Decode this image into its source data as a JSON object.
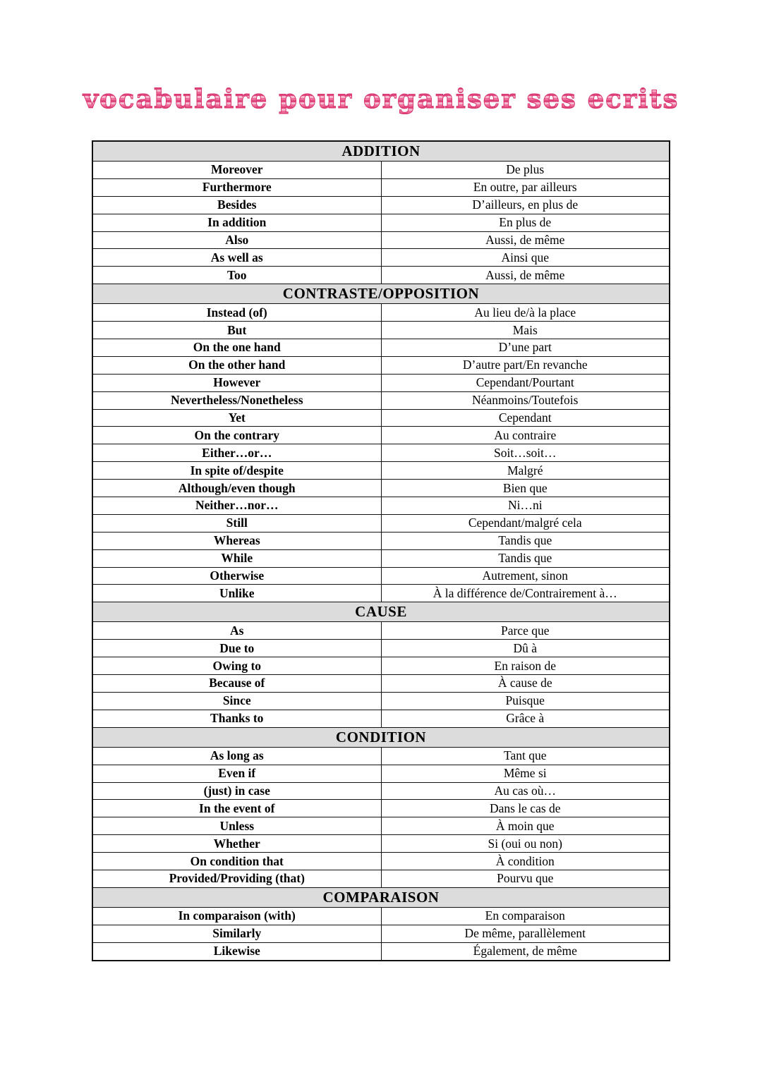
{
  "page": {
    "title": "vocabulaire pour organiser ses ecrits",
    "title_color": "#ee6d9b",
    "header_bg_color": "#dcdcdc",
    "border_color": "#111111"
  },
  "table": {
    "columns": [
      "english",
      "french"
    ],
    "sections": [
      {
        "header": "ADDITION",
        "rows": [
          {
            "en": "Moreover",
            "fr": "De plus"
          },
          {
            "en": "Furthermore",
            "fr": "En outre, par ailleurs"
          },
          {
            "en": "Besides",
            "fr": "D’ailleurs, en plus de"
          },
          {
            "en": "In addition",
            "fr": "En plus de"
          },
          {
            "en": "Also",
            "fr": "Aussi, de même"
          },
          {
            "en": "As well as",
            "fr": "Ainsi que"
          },
          {
            "en": "Too",
            "fr": "Aussi, de même"
          }
        ]
      },
      {
        "header": "CONTRASTE/OPPOSITION",
        "rows": [
          {
            "en": "Instead (of)",
            "fr": "Au lieu de/à la place"
          },
          {
            "en": "But",
            "fr": "Mais"
          },
          {
            "en": "On the one hand",
            "fr": "D’une part"
          },
          {
            "en": "On the other hand",
            "fr": "D’autre part/En revanche"
          },
          {
            "en": "However",
            "fr": "Cependant/Pourtant"
          },
          {
            "en": "Nevertheless/Nonetheless",
            "fr": "Néanmoins/Toutefois"
          },
          {
            "en": "Yet",
            "fr": "Cependant"
          },
          {
            "en": "On the contrary",
            "fr": "Au contraire"
          },
          {
            "en": "Either…or…",
            "fr": "Soit…soit…"
          },
          {
            "en": "In spite of/despite",
            "fr": "Malgré"
          },
          {
            "en": "Although/even though",
            "fr": "Bien que"
          },
          {
            "en": "Neither…nor…",
            "fr": "Ni…ni"
          },
          {
            "en": "Still",
            "fr": "Cependant/malgré cela"
          },
          {
            "en": "Whereas",
            "fr": "Tandis que"
          },
          {
            "en": "While",
            "fr": "Tandis que"
          },
          {
            "en": "Otherwise",
            "fr": "Autrement, sinon"
          },
          {
            "en": "Unlike",
            "fr": "À la différence de/Contrairement à…"
          }
        ]
      },
      {
        "header": "CAUSE",
        "rows": [
          {
            "en": "As",
            "fr": "Parce que"
          },
          {
            "en": "Due to",
            "fr": "Dû à"
          },
          {
            "en": "Owing to",
            "fr": "En raison de"
          },
          {
            "en": "Because of",
            "fr": "À cause de"
          },
          {
            "en": "Since",
            "fr": "Puisque"
          },
          {
            "en": "Thanks to",
            "fr": "Grâce à"
          }
        ]
      },
      {
        "header": "CONDITION",
        "rows": [
          {
            "en": "As long as",
            "fr": "Tant que"
          },
          {
            "en": "Even if",
            "fr": "Même si"
          },
          {
            "en": "(just) in case",
            "fr": "Au cas où…"
          },
          {
            "en": "In the event of",
            "fr": "Dans le cas de"
          },
          {
            "en": "Unless",
            "fr": "À moin que"
          },
          {
            "en": "Whether",
            "fr": "Si (oui ou non)"
          },
          {
            "en": "On condition that",
            "fr": "À condition"
          },
          {
            "en": "Provided/Providing (that)",
            "fr": "Pourvu que"
          }
        ]
      },
      {
        "header": "COMPARAISON",
        "rows": [
          {
            "en": "In comparaison (with)",
            "fr": "En comparaison"
          },
          {
            "en": "Similarly",
            "fr": "De même, parallèlement"
          },
          {
            "en": "Likewise",
            "fr": "Également, de même"
          }
        ]
      }
    ]
  }
}
